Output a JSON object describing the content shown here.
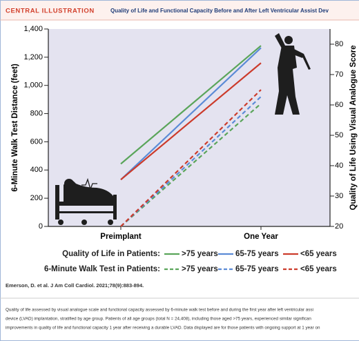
{
  "chart_data": {
    "type": "line",
    "label": "CENTRAL ILLUSTRATION",
    "title": "Quality of Life and Functional Capacity Before and After Left Ventricular Assist Dev",
    "categories": [
      "Preimplant",
      "One Year"
    ],
    "ylabel": "6-Minute Walk Test Distance (feet)",
    "y2label": "Quality of Life Using Visual Analogue Score",
    "ylim": [
      0,
      1400
    ],
    "yticks": [
      0,
      200,
      400,
      600,
      800,
      {
        "value": 1000,
        "label": "1,000"
      },
      {
        "value": 1200,
        "label": "1,200"
      },
      {
        "value": 1400,
        "label": "1,400"
      }
    ],
    "y2lim": [
      20,
      85
    ],
    "y2ticks": [
      20,
      30,
      40,
      50,
      60,
      70,
      80
    ],
    "series_groups": [
      {
        "name": "Quality of Life in Patients:",
        "axis": "y2",
        "dashed": false,
        "series": [
          {
            "name": ">75 years",
            "color": "#5aa55a",
            "values": [
              40.6,
              79.5
            ]
          },
          {
            "name": "65-75 years",
            "color": "#5b8bd6",
            "values": [
              35.4,
              78.8
            ]
          },
          {
            "name": "<65 years",
            "color": "#cc3b2b",
            "values": [
              35.4,
              73.8
            ]
          }
        ]
      },
      {
        "name": "6-Minute Walk Test in Patients:",
        "axis": "y",
        "dashed": true,
        "series": [
          {
            "name": ">75 years",
            "color": "#5aa55a",
            "values": [
              0,
              871
            ]
          },
          {
            "name": "65-75 years",
            "color": "#5b8bd6",
            "values": [
              0,
              920
            ]
          },
          {
            "name": "<65 years",
            "color": "#cc3b2b",
            "values": [
              0,
              969
            ]
          }
        ]
      }
    ]
  },
  "citation": "Emerson, D. et al. J Am Coll Cardiol. 2021;78(9):883-894.",
  "caption": [
    "Quality of life assessed by visual analogue scale and functional capacity assessed by 6-minute walk test before and during the first year after left ventricular assi",
    "device (LVAD) implantation, stratified by age group. Patients of all age groups (total N = 24,408), including those aged >75 years, experienced similar significan",
    "improvements in quality of life and functional capacity 1 year after receiving a durable LVAD. Data displayed are for those patients with ongoing support at 1 year on"
  ]
}
